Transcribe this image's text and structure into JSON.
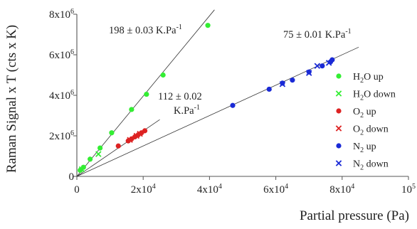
{
  "chart_data": {
    "type": "scatter",
    "xlabel": "Partial pressure (Pa)",
    "ylabel": "Raman Signal x T (cts x K)",
    "xlim": [
      0,
      100000
    ],
    "ylim": [
      0,
      8000000
    ],
    "x_ticks": [
      {
        "value": 0,
        "label": "0"
      },
      {
        "value": 20000,
        "label": "2x10",
        "exp": "4"
      },
      {
        "value": 40000,
        "label": "4x10",
        "exp": "4"
      },
      {
        "value": 60000,
        "label": "6x10",
        "exp": "4"
      },
      {
        "value": 80000,
        "label": "8x10",
        "exp": "4"
      },
      {
        "value": 100000,
        "label": "10",
        "exp": "5"
      }
    ],
    "y_ticks": [
      {
        "value": 0,
        "label": "0"
      },
      {
        "value": 2000000,
        "label": "2x10",
        "exp": "6"
      },
      {
        "value": 4000000,
        "label": "4x10",
        "exp": "6"
      },
      {
        "value": 6000000,
        "label": "6x10",
        "exp": "6"
      },
      {
        "value": 8000000,
        "label": "8x10",
        "exp": "6"
      }
    ],
    "series": [
      {
        "name": "H2O up",
        "legend": {
          "pre": "H",
          "sub": "2",
          "post": "O up"
        },
        "marker": "circle",
        "color": "#33ee33",
        "points": [
          [
            1000,
            300000
          ],
          [
            2000,
            450000
          ],
          [
            4000,
            850000
          ],
          [
            7000,
            1400000
          ],
          [
            10500,
            2150000
          ],
          [
            16500,
            3300000
          ],
          [
            21000,
            4050000
          ],
          [
            26000,
            5000000
          ],
          [
            39500,
            7450000
          ]
        ]
      },
      {
        "name": "H2O down",
        "legend": {
          "pre": "H",
          "sub": "2",
          "post": "O down"
        },
        "marker": "x",
        "color": "#33ee33",
        "points": [
          [
            1500,
            350000
          ],
          [
            6500,
            1100000
          ]
        ]
      },
      {
        "name": "O2 up",
        "legend": {
          "pre": "O",
          "sub": "2",
          "post": " up"
        },
        "marker": "circle",
        "color": "#dd2222",
        "points": [
          [
            12500,
            1500000
          ],
          [
            15500,
            1750000
          ],
          [
            16500,
            1850000
          ],
          [
            17500,
            1950000
          ],
          [
            18500,
            2050000
          ],
          [
            19500,
            2150000
          ],
          [
            20500,
            2250000
          ]
        ]
      },
      {
        "name": "O2 down",
        "legend": {
          "pre": "O",
          "sub": "2",
          "post": " down"
        },
        "marker": "x",
        "color": "#dd2222",
        "points": [
          [
            16000,
            1800000
          ],
          [
            18000,
            2000000
          ],
          [
            19000,
            2100000
          ]
        ]
      },
      {
        "name": "N2 up",
        "legend": {
          "pre": "N",
          "sub": "2",
          "post": " up"
        },
        "marker": "circle",
        "color": "#1a2ad6",
        "points": [
          [
            47000,
            3500000
          ],
          [
            58000,
            4300000
          ],
          [
            62000,
            4600000
          ],
          [
            65000,
            4750000
          ],
          [
            70000,
            5150000
          ],
          [
            74000,
            5450000
          ],
          [
            76500,
            5650000
          ],
          [
            77000,
            5750000
          ]
        ]
      },
      {
        "name": "N2 down",
        "legend": {
          "pre": "N",
          "sub": "2",
          "post": " down"
        },
        "marker": "x",
        "color": "#1a2ad6",
        "points": [
          [
            62000,
            4550000
          ],
          [
            70000,
            5100000
          ],
          [
            72500,
            5450000
          ],
          [
            76000,
            5600000
          ]
        ]
      }
    ],
    "fits": [
      {
        "slope": 198,
        "x_end": 41500
      },
      {
        "slope": 112,
        "x_end": 25000
      },
      {
        "slope": 75,
        "x_end": 85000
      }
    ],
    "annotations": [
      {
        "lines": [
          {
            "text": "198 ± 0.03 K.Pa",
            "sup": "-1"
          }
        ]
      },
      {
        "lines": [
          {
            "text": "112 ± 0.02",
            "sup": ""
          },
          {
            "text": "K.Pa",
            "sup": "-1"
          }
        ]
      },
      {
        "lines": [
          {
            "text": "75 ± 0.01 K.Pa",
            "sup": "-1"
          }
        ]
      }
    ],
    "grid": false,
    "legend_position": "right"
  }
}
